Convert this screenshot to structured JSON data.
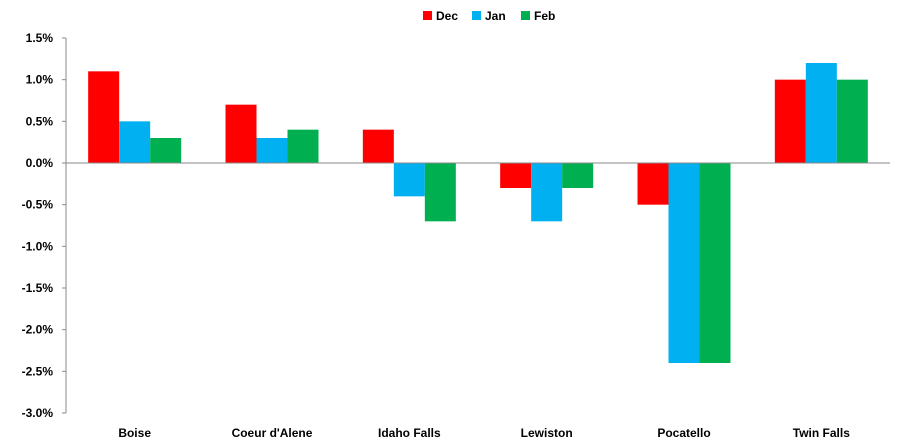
{
  "chart_data": {
    "type": "bar",
    "categories": [
      "Boise",
      "Coeur d'Alene",
      "Idaho Falls",
      "Lewiston",
      "Pocatello",
      "Twin Falls"
    ],
    "series": [
      {
        "name": "Dec",
        "color": "#ff0000",
        "values": [
          1.1,
          0.7,
          0.4,
          -0.3,
          -0.5,
          1.0
        ]
      },
      {
        "name": "Jan",
        "color": "#00b0f0",
        "values": [
          0.5,
          0.3,
          -0.4,
          -0.7,
          -2.4,
          1.2
        ]
      },
      {
        "name": "Feb",
        "color": "#00b050",
        "values": [
          0.3,
          0.4,
          -0.7,
          -0.3,
          -2.4,
          1.0
        ]
      }
    ],
    "yticks": [
      "1.5%",
      "1.0%",
      "0.5%",
      "0.0%",
      "-0.5%",
      "-1.0%",
      "-1.5%",
      "-2.0%",
      "-2.5%",
      "-3.0%"
    ],
    "ytick_values": [
      1.5,
      1.0,
      0.5,
      0.0,
      -0.5,
      -1.0,
      -1.5,
      -2.0,
      -2.5,
      -3.0
    ],
    "ylim": [
      -3.0,
      1.5
    ],
    "legend_position": "top-center",
    "grid": false,
    "title": "",
    "xlabel": "",
    "ylabel": ""
  }
}
